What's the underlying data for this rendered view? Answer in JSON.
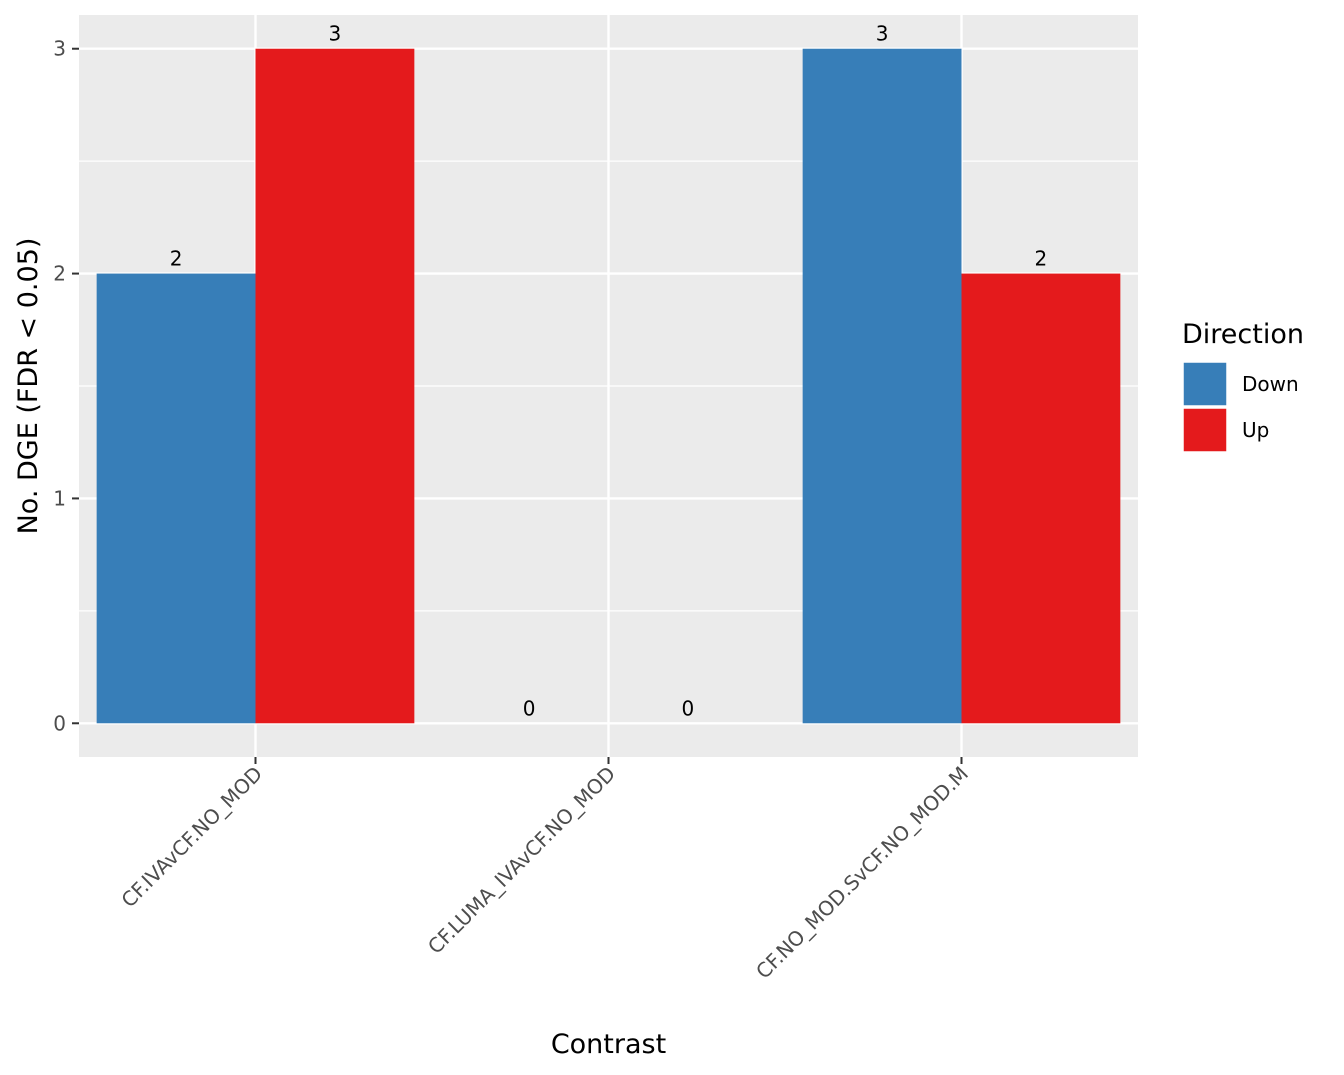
{
  "chart_data": {
    "type": "bar",
    "xlabel": "Contrast",
    "ylabel": "No. DGE (FDR < 0.05)",
    "categories": [
      "CF.IVAvCF.NO_MOD",
      "CF.LUMA_IVAvCF.NO_MOD",
      "CF.NO_MOD.SvCF.NO_MOD.M"
    ],
    "series": [
      {
        "name": "Down",
        "color": "#377EB8",
        "values": [
          2,
          0,
          3
        ]
      },
      {
        "name": "Up",
        "color": "#E41A1C",
        "values": [
          3,
          0,
          2
        ]
      }
    ],
    "ylim": [
      -0.15,
      3.15
    ],
    "yticks": [
      0,
      1,
      2,
      3
    ],
    "grid": true,
    "legend": {
      "title": "Direction",
      "position": "right"
    },
    "panel_background": "#EBEBEB",
    "grid_color": "#FFFFFF"
  }
}
